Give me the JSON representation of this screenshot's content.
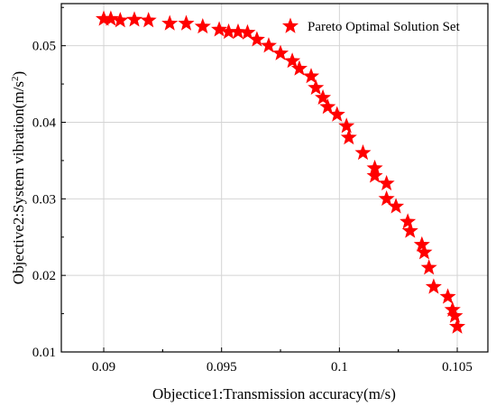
{
  "chart_data": {
    "type": "scatter",
    "xlabel": "Objectice1:Transmission accuracy(m/s)",
    "ylabel_main": "Objective2:System vibration(m/s",
    "ylabel_sup": "2",
    "ylabel_close": ")",
    "xlim": [
      0.0882,
      0.1063
    ],
    "ylim": [
      0.01,
      0.0555
    ],
    "xticks": [
      0.09,
      0.095,
      0.1,
      0.105
    ],
    "xtick_labels": [
      "0.09",
      "0.095",
      "0.1",
      "0.105"
    ],
    "yticks": [
      0.01,
      0.02,
      0.03,
      0.04,
      0.05
    ],
    "ytick_labels": [
      "0.01",
      "0.02",
      "0.03",
      "0.04",
      "0.05"
    ],
    "grid": true,
    "legend_position": "top-right",
    "marker": "star",
    "color": "#ff0000",
    "series": [
      {
        "name": "Pareto Optimal Solution Set",
        "points": [
          [
            0.09,
            0.0535
          ],
          [
            0.0903,
            0.0535
          ],
          [
            0.0907,
            0.0533
          ],
          [
            0.0913,
            0.0534
          ],
          [
            0.0919,
            0.0533
          ],
          [
            0.0928,
            0.0529
          ],
          [
            0.0935,
            0.0529
          ],
          [
            0.0942,
            0.0525
          ],
          [
            0.0949,
            0.0521
          ],
          [
            0.0953,
            0.0518
          ],
          [
            0.0957,
            0.0518
          ],
          [
            0.0961,
            0.0517
          ],
          [
            0.0965,
            0.0508
          ],
          [
            0.097,
            0.05
          ],
          [
            0.0975,
            0.049
          ],
          [
            0.098,
            0.048
          ],
          [
            0.0983,
            0.047
          ],
          [
            0.0988,
            0.046
          ],
          [
            0.099,
            0.0445
          ],
          [
            0.0993,
            0.0432
          ],
          [
            0.0995,
            0.042
          ],
          [
            0.0999,
            0.041
          ],
          [
            0.1003,
            0.0395
          ],
          [
            0.1004,
            0.038
          ],
          [
            0.101,
            0.036
          ],
          [
            0.1015,
            0.034
          ],
          [
            0.1015,
            0.033
          ],
          [
            0.102,
            0.032
          ],
          [
            0.102,
            0.03
          ],
          [
            0.1024,
            0.029
          ],
          [
            0.1029,
            0.027
          ],
          [
            0.103,
            0.0258
          ],
          [
            0.1035,
            0.024
          ],
          [
            0.1036,
            0.023
          ],
          [
            0.1038,
            0.021
          ],
          [
            0.104,
            0.0185
          ],
          [
            0.1046,
            0.0172
          ],
          [
            0.1048,
            0.0155
          ],
          [
            0.1049,
            0.0147
          ],
          [
            0.105,
            0.0133
          ]
        ]
      }
    ]
  }
}
